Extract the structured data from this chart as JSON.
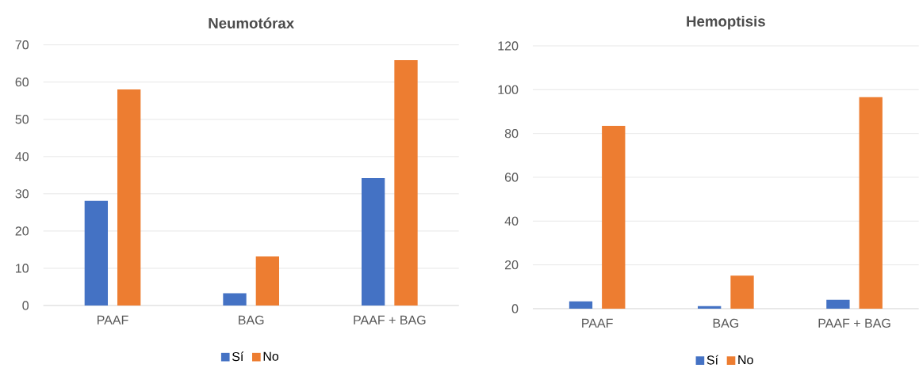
{
  "chart_data": [
    {
      "type": "bar",
      "title": "Neumotórax",
      "categories": [
        "PAAF",
        "BAG",
        "PAAF + BAG"
      ],
      "series": [
        {
          "name": "Sí",
          "color": "#4472c4",
          "values": [
            28.1,
            3.3,
            34.2
          ]
        },
        {
          "name": "No",
          "color": "#ed7d31",
          "values": [
            58.0,
            13.2,
            65.9
          ]
        }
      ],
      "ylim": [
        0,
        70
      ],
      "yticks": [
        0,
        10,
        20,
        30,
        40,
        50,
        60,
        70
      ],
      "grid": "y",
      "legend": "bottom"
    },
    {
      "type": "bar",
      "title": "Hemoptisis",
      "categories": [
        "PAAF",
        "BAG",
        "PAAF + BAG"
      ],
      "series": [
        {
          "name": "Sí",
          "color": "#4472c4",
          "values": [
            3.3,
            1.2,
            4.1
          ]
        },
        {
          "name": "No",
          "color": "#ed7d31",
          "values": [
            83.5,
            15.1,
            96.6
          ]
        }
      ],
      "ylim": [
        0,
        120
      ],
      "yticks": [
        0,
        20,
        40,
        60,
        80,
        100,
        120
      ],
      "grid": "y",
      "legend": "bottom"
    }
  ]
}
